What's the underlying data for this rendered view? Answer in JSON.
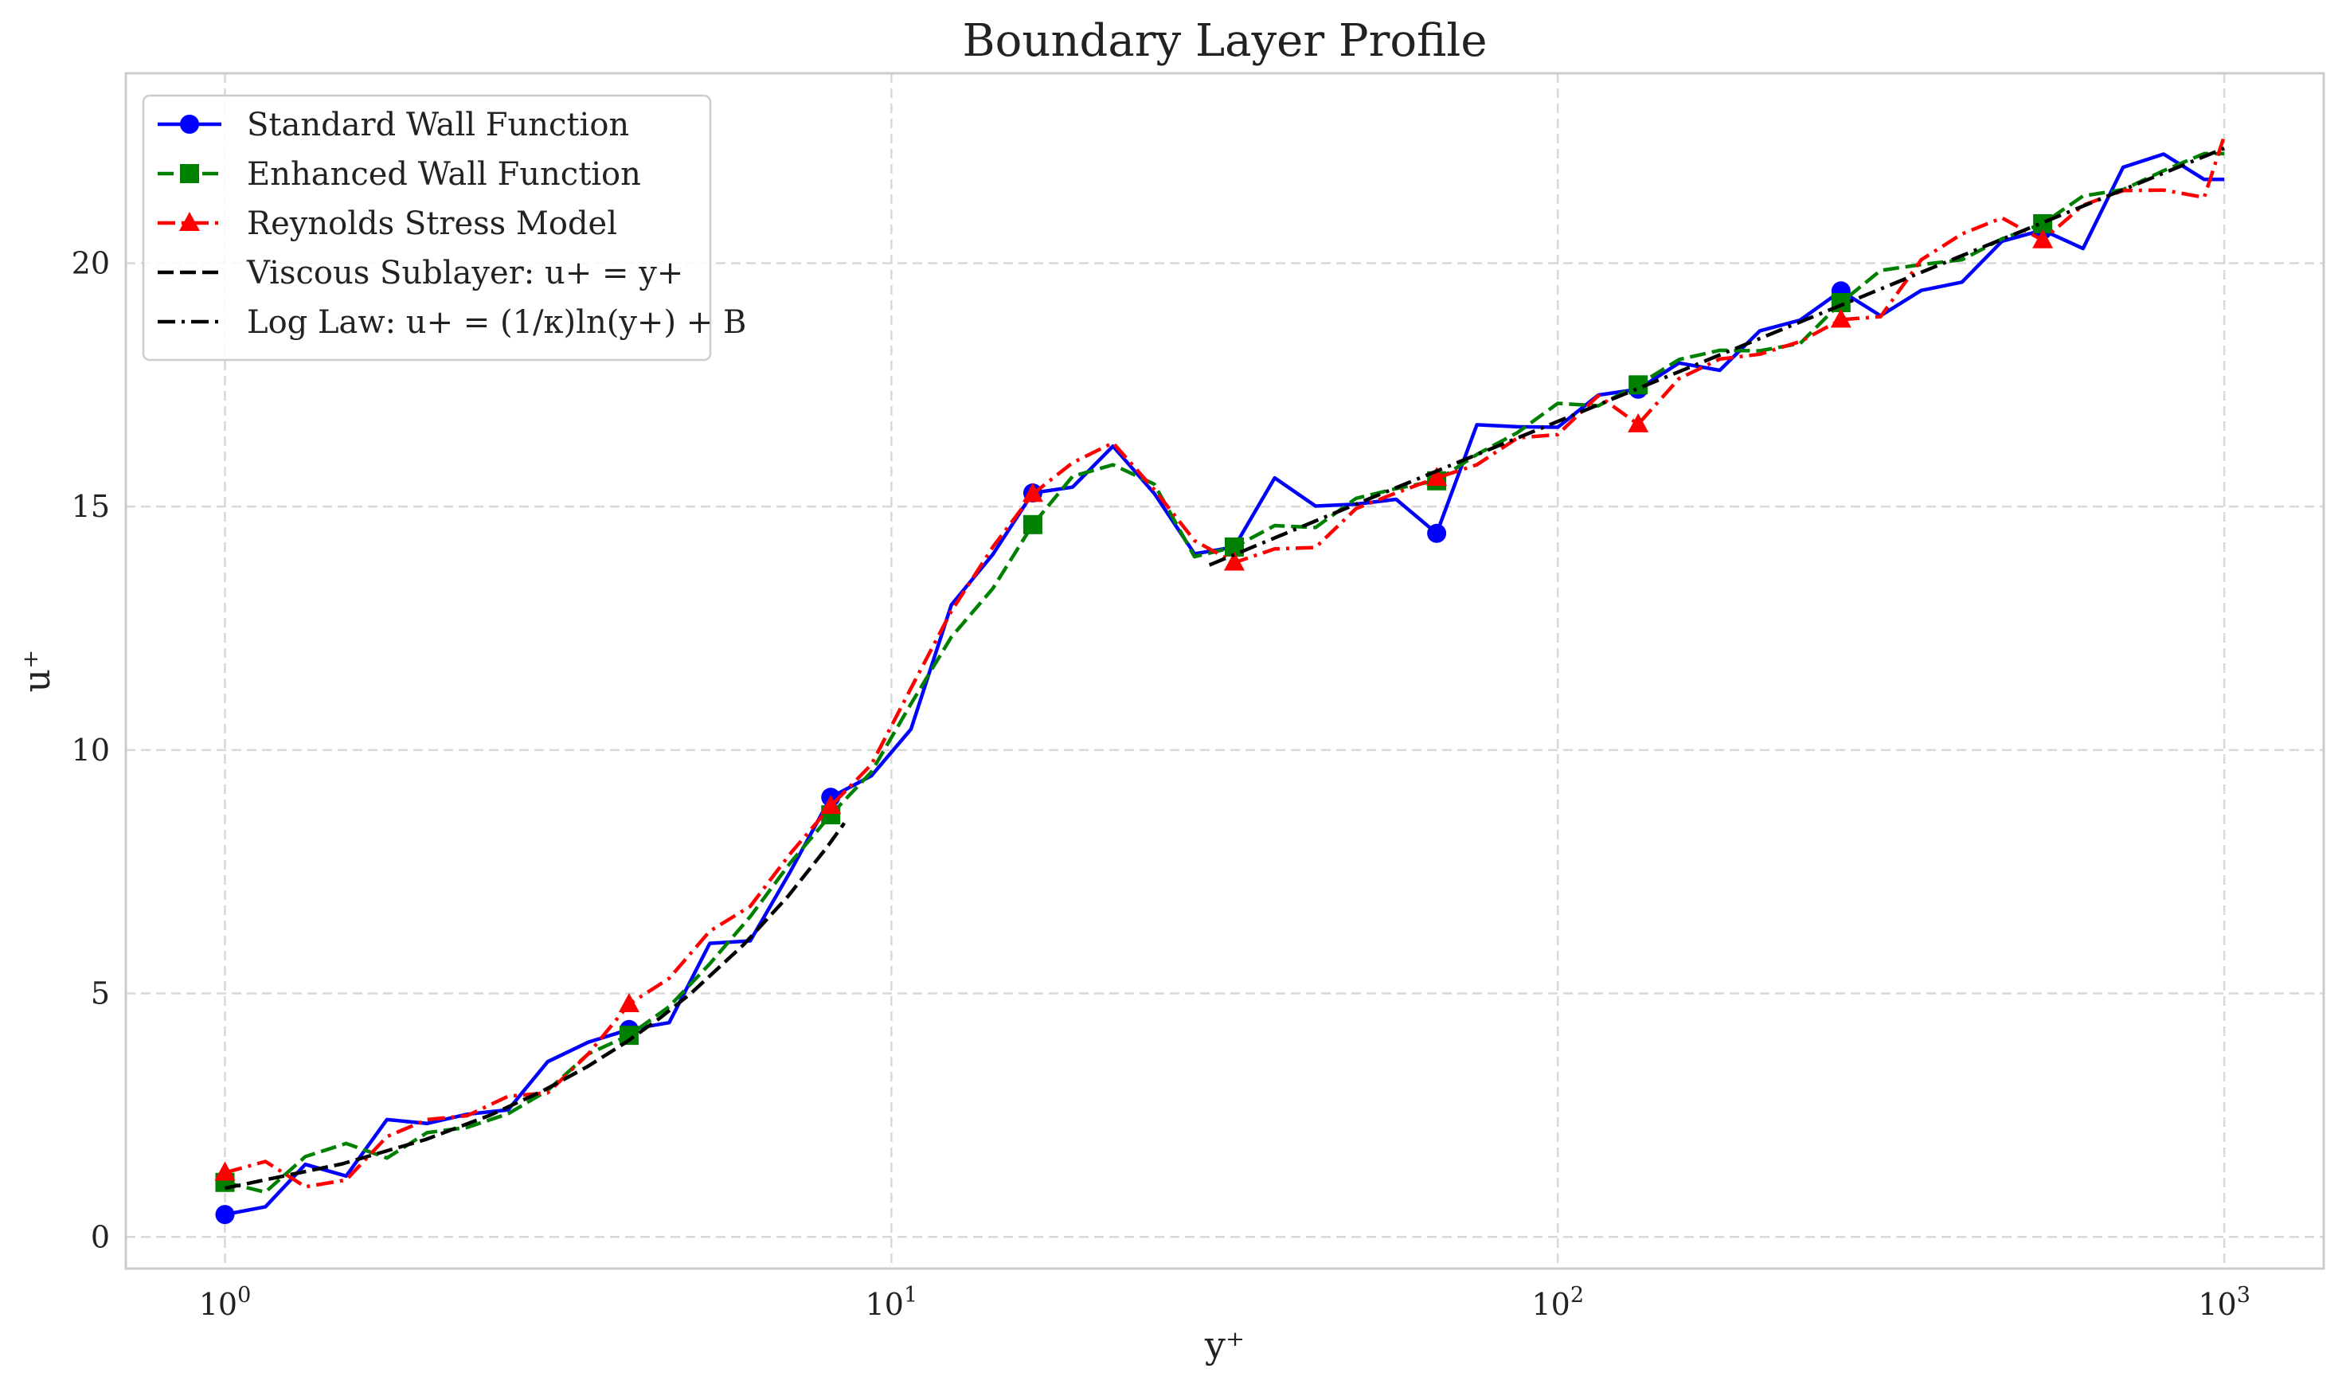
{
  "chart_data": {
    "type": "line",
    "title": "Boundary Layer Profile",
    "xlabel": "y⁺",
    "ylabel": "u⁺",
    "xscale": "log",
    "xlim": [
      0.71,
      1410
    ],
    "ylim": [
      -0.65,
      23.9
    ],
    "xticks": [
      {
        "value": 1,
        "base": "10",
        "exp": "0"
      },
      {
        "value": 10,
        "base": "10",
        "exp": "1"
      },
      {
        "value": 100,
        "base": "10",
        "exp": "2"
      },
      {
        "value": 1000,
        "base": "10",
        "exp": "3"
      }
    ],
    "yticks": [
      {
        "value": 0,
        "label": "0"
      },
      {
        "value": 5,
        "label": "5"
      },
      {
        "value": 10,
        "label": "10"
      },
      {
        "value": 15,
        "label": "15"
      },
      {
        "value": 20,
        "label": "20"
      }
    ],
    "grid": true,
    "legend_position": "upper-left",
    "series": [
      {
        "name": "Standard Wall Function",
        "color": "#0000ff",
        "linestyle": "solid",
        "marker": "circle",
        "x": [
          1.0,
          1.15,
          1.32,
          1.52,
          1.75,
          2.01,
          2.31,
          2.66,
          3.05,
          3.51,
          4.04,
          4.64,
          5.34,
          6.14,
          7.05,
          8.11,
          9.33,
          10.7,
          12.3,
          14.2,
          16.3,
          18.7,
          21.5,
          24.8,
          28.5,
          32.7,
          37.6,
          43.3,
          49.8,
          57.2,
          65.8,
          75.6,
          87.0,
          100.0,
          115.0,
          132.0,
          152.0,
          175.0,
          201.0,
          231.0,
          266.0,
          305.0,
          351.0,
          404.0,
          464.0,
          534.0,
          614.0,
          705.0,
          811.0,
          933.0,
          1000.0
        ],
        "y": [
          0.46,
          0.62,
          1.49,
          1.25,
          2.41,
          2.33,
          2.52,
          2.61,
          3.6,
          4.0,
          4.26,
          4.4,
          6.03,
          6.08,
          7.5,
          9.03,
          9.47,
          10.43,
          12.98,
          14.02,
          15.28,
          15.4,
          16.24,
          15.27,
          14.03,
          14.17,
          15.59,
          15.01,
          15.05,
          15.15,
          14.45,
          16.68,
          16.64,
          16.63,
          17.29,
          17.41,
          17.95,
          17.8,
          18.61,
          18.83,
          19.43,
          18.92,
          19.44,
          19.61,
          20.45,
          20.68,
          20.3,
          21.97,
          22.24,
          21.72,
          21.72
        ],
        "marker_x": [
          1.0,
          4.04,
          8.11,
          16.3,
          32.7,
          65.8,
          132.0,
          266.0,
          534.0
        ],
        "marker_y": [
          0.46,
          4.26,
          9.03,
          15.28,
          14.17,
          14.45,
          17.41,
          19.43,
          20.68
        ]
      },
      {
        "name": "Enhanced Wall Function",
        "color": "#008000",
        "linestyle": "dashed",
        "marker": "square",
        "x": [
          1.0,
          1.15,
          1.32,
          1.52,
          1.75,
          2.01,
          2.31,
          2.66,
          3.05,
          3.51,
          4.04,
          4.64,
          5.34,
          6.14,
          7.05,
          8.11,
          9.33,
          10.7,
          12.3,
          14.2,
          16.3,
          18.7,
          21.5,
          24.8,
          28.5,
          32.7,
          37.6,
          43.3,
          49.8,
          57.2,
          65.8,
          75.6,
          87.0,
          100.0,
          115.0,
          132.0,
          152.0,
          175.0,
          201.0,
          231.0,
          266.0,
          305.0,
          351.0,
          404.0,
          464.0,
          534.0,
          614.0,
          705.0,
          811.0,
          933.0,
          1000.0
        ],
        "y": [
          1.12,
          0.92,
          1.65,
          1.92,
          1.62,
          2.14,
          2.25,
          2.53,
          3.01,
          3.76,
          4.14,
          4.73,
          5.61,
          6.58,
          7.68,
          8.67,
          9.55,
          10.95,
          12.32,
          13.32,
          14.63,
          15.62,
          15.86,
          15.46,
          13.97,
          14.17,
          14.61,
          14.57,
          15.17,
          15.37,
          15.53,
          16.07,
          16.52,
          17.12,
          17.07,
          17.5,
          18.02,
          18.21,
          18.2,
          18.35,
          19.19,
          19.85,
          19.97,
          20.07,
          20.5,
          20.81,
          21.38,
          21.51,
          21.9,
          22.25,
          22.25
        ],
        "marker_x": [
          1.0,
          4.04,
          8.11,
          16.3,
          32.7,
          65.8,
          132.0,
          266.0,
          534.0
        ],
        "marker_y": [
          1.12,
          4.14,
          8.67,
          14.63,
          14.17,
          15.53,
          17.5,
          19.19,
          20.81
        ]
      },
      {
        "name": "Reynolds Stress Model",
        "color": "#ff0000",
        "linestyle": "dashdot",
        "marker": "triangle",
        "x": [
          1.0,
          1.15,
          1.32,
          1.52,
          1.75,
          2.01,
          2.31,
          2.66,
          3.05,
          3.51,
          4.04,
          4.64,
          5.34,
          6.14,
          7.05,
          8.11,
          9.33,
          10.7,
          12.3,
          14.2,
          16.3,
          18.7,
          21.5,
          24.8,
          28.5,
          32.7,
          37.6,
          43.3,
          49.8,
          57.2,
          65.8,
          75.6,
          87.0,
          100.0,
          115.0,
          132.0,
          152.0,
          175.0,
          201.0,
          231.0,
          266.0,
          305.0,
          351.0,
          404.0,
          464.0,
          534.0,
          614.0,
          705.0,
          811.0,
          933.0,
          1000.0
        ],
        "y": [
          1.32,
          1.55,
          1.03,
          1.17,
          2.06,
          2.41,
          2.49,
          2.89,
          2.96,
          3.76,
          4.78,
          5.31,
          6.28,
          6.79,
          7.87,
          8.85,
          9.7,
          11.27,
          12.85,
          14.17,
          15.26,
          15.9,
          16.31,
          15.35,
          14.3,
          13.85,
          14.13,
          14.16,
          14.96,
          15.28,
          15.59,
          15.86,
          16.41,
          16.48,
          17.28,
          16.69,
          17.63,
          18.03,
          18.13,
          18.39,
          18.84,
          18.9,
          20.07,
          20.6,
          20.93,
          20.47,
          21.19,
          21.49,
          21.5,
          21.35,
          22.61
        ],
        "marker_x": [
          1.0,
          4.04,
          8.11,
          16.3,
          32.7,
          65.8,
          132.0,
          266.0,
          534.0
        ],
        "marker_y": [
          1.32,
          4.78,
          8.85,
          15.26,
          13.85,
          15.59,
          16.69,
          18.84,
          20.47
        ]
      },
      {
        "name": "Viscous Sublayer: u+ = y+",
        "color": "#000000",
        "linestyle": "dashed",
        "marker": "none",
        "x": [
          1.0,
          1.5,
          2.0,
          2.5,
          3.0,
          3.5,
          4.0,
          4.5,
          5.0,
          6.0,
          7.0,
          8.0,
          8.5
        ],
        "y": [
          1.0,
          1.5,
          2.0,
          2.5,
          3.0,
          3.5,
          4.0,
          4.5,
          5.0,
          6.0,
          7.0,
          8.0,
          8.5
        ]
      },
      {
        "name": "Log Law: u+ = (1/κ)ln(y+) + B",
        "color": "#000000",
        "linestyle": "dashdot",
        "marker": "none",
        "x": [
          30,
          50,
          100,
          200,
          400,
          700,
          1000
        ],
        "y": [
          13.8,
          15.06,
          16.75,
          18.44,
          20.13,
          21.49,
          22.36
        ]
      }
    ]
  }
}
